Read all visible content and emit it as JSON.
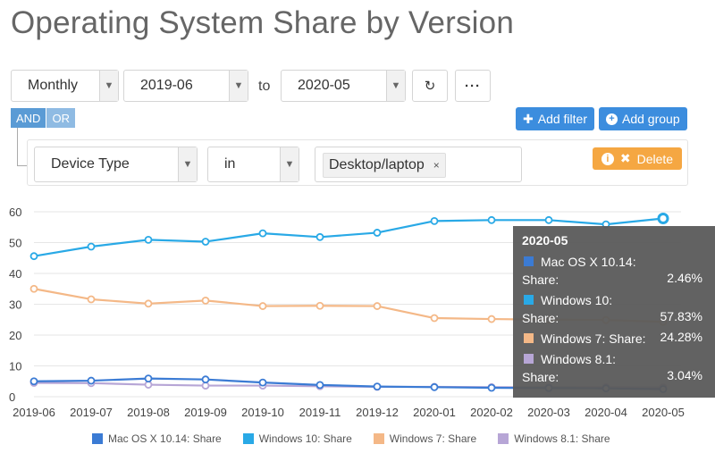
{
  "title": "Operating System Share by Version",
  "controls": {
    "granularity": "Monthly",
    "date_from": "2019-06",
    "to_label": "to",
    "date_to": "2020-05",
    "refresh_icon": "refresh-icon",
    "more_icon": "ellipsis-icon"
  },
  "logic": {
    "and_label": "AND",
    "or_label": "OR"
  },
  "buttons": {
    "add_filter": "Add filter",
    "add_group": "Add group",
    "delete": "Delete"
  },
  "filter": {
    "field": "Device Type",
    "operator": "in",
    "values": [
      "Desktop/laptop"
    ],
    "remove_symbol": "×"
  },
  "colors": {
    "mac": "#3b7bd4",
    "win10": "#29a9e6",
    "win7": "#f4b887",
    "win81": "#b7a6d6",
    "primary_button": "#3c8dde",
    "delete_button": "#f5a742"
  },
  "chart_data": {
    "type": "line",
    "x": [
      "2019-06",
      "2019-07",
      "2019-08",
      "2019-09",
      "2019-10",
      "2019-11",
      "2019-12",
      "2020-01",
      "2020-02",
      "2020-03",
      "2020-04",
      "2020-05"
    ],
    "ylim": [
      0,
      60
    ],
    "yticks": [
      0,
      10,
      20,
      30,
      40,
      50,
      60
    ],
    "grid": true,
    "legend_position": "bottom",
    "series": [
      {
        "name": "Mac OS X 10.14: Share",
        "color": "#3b7bd4",
        "values": [
          5.0,
          5.2,
          5.9,
          5.6,
          4.6,
          3.8,
          3.3,
          3.1,
          2.9,
          2.8,
          2.7,
          2.46
        ]
      },
      {
        "name": "Windows 10: Share",
        "color": "#29a9e6",
        "values": [
          45.6,
          48.7,
          50.9,
          50.3,
          53.0,
          51.8,
          53.2,
          57.0,
          57.3,
          57.3,
          55.9,
          57.83
        ]
      },
      {
        "name": "Windows 7: Share",
        "color": "#f4b887",
        "values": [
          35.0,
          31.6,
          30.2,
          31.2,
          29.4,
          29.5,
          29.4,
          25.5,
          25.2,
          25.0,
          24.9,
          24.28
        ]
      },
      {
        "name": "Windows 8.1: Share",
        "color": "#b7a6d6",
        "values": [
          4.5,
          4.4,
          3.9,
          3.6,
          3.6,
          3.4,
          3.2,
          3.2,
          3.1,
          3.1,
          3.1,
          3.04
        ]
      }
    ],
    "tooltip": {
      "header": "2020-05",
      "rows": [
        {
          "name_line1": "Mac OS X 10.14:",
          "name_line2": "Share:",
          "value": "2.46%",
          "color": "#3b7bd4",
          "single": false
        },
        {
          "name_line1": "Windows 10:",
          "name_line2": "Share:",
          "value": "57.83%",
          "color": "#29a9e6",
          "single": false
        },
        {
          "name_line1": "Windows 7: Share:",
          "name_line2": "",
          "value": "24.28%",
          "color": "#f4b887",
          "single": true
        },
        {
          "name_line1": "Windows 8.1:",
          "name_line2": "Share:",
          "value": "3.04%",
          "color": "#b7a6d6",
          "single": false
        }
      ]
    }
  }
}
